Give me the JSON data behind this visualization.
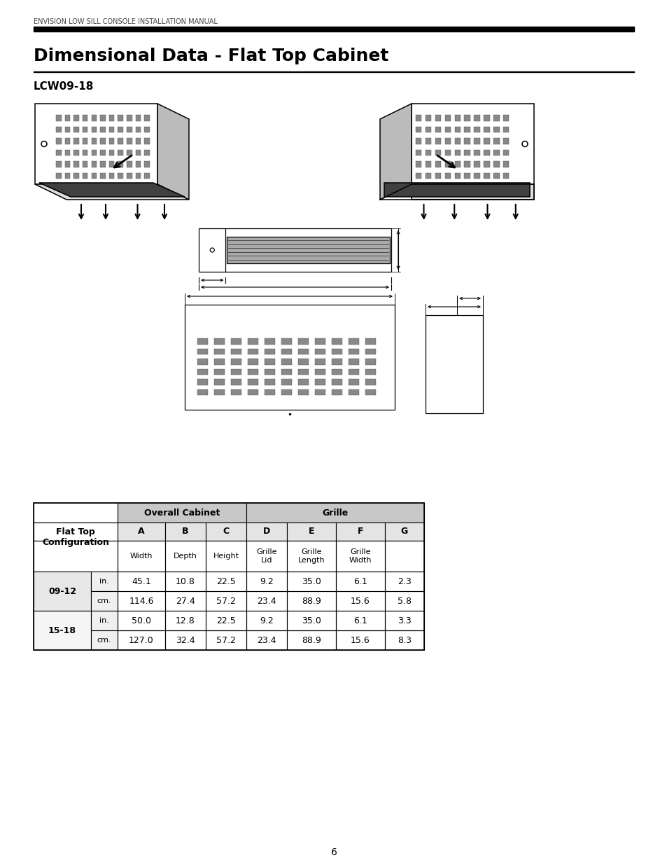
{
  "page_header": "ENVISION LOW SILL CONSOLE INSTALLATION MANUAL",
  "title": "Dimensional Data - Flat Top Cabinet",
  "subtitle": "LCW09-18",
  "page_number": "6",
  "table": {
    "rows": [
      [
        "09-12",
        "in.",
        "45.1",
        "10.8",
        "22.5",
        "9.2",
        "35.0",
        "6.1",
        "2.3"
      ],
      [
        "09-12",
        "cm.",
        "114.6",
        "27.4",
        "57.2",
        "23.4",
        "88.9",
        "15.6",
        "5.8"
      ],
      [
        "15-18",
        "in.",
        "50.0",
        "12.8",
        "22.5",
        "9.2",
        "35.0",
        "6.1",
        "3.3"
      ],
      [
        "15-18",
        "cm.",
        "127.0",
        "32.4",
        "57.2",
        "23.4",
        "88.9",
        "15.6",
        "8.3"
      ]
    ]
  },
  "colors": {
    "background": "#ffffff",
    "text": "#000000",
    "header_bg": "#c8c8c8",
    "row_bg": "#e8e8e8",
    "dark_band": "#404040"
  }
}
